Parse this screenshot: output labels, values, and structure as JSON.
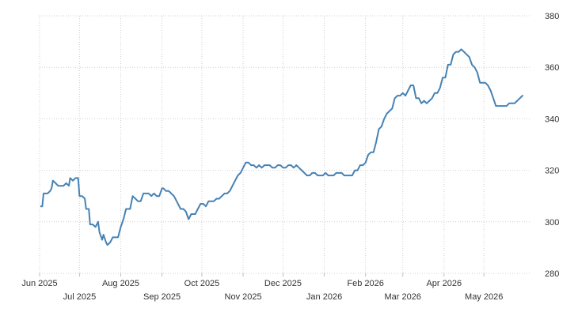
{
  "chart_data": {
    "type": "line",
    "title": "",
    "xlabel": "",
    "ylabel": "",
    "grid": true,
    "legend": "none",
    "color": "#4682b4",
    "ylim": [
      280,
      380
    ],
    "yticks": [
      280,
      300,
      320,
      340,
      360,
      380
    ],
    "xlim": [
      "2025-06-01",
      "2026-06-05"
    ],
    "xticks": [
      {
        "date": "2025-06-01",
        "label": "Jun 2025",
        "row": "upper"
      },
      {
        "date": "2025-07-01",
        "label": "Jul 2025",
        "row": "lower"
      },
      {
        "date": "2025-08-01",
        "label": "Aug 2025",
        "row": "upper"
      },
      {
        "date": "2025-09-01",
        "label": "Sep 2025",
        "row": "lower"
      },
      {
        "date": "2025-10-01",
        "label": "Oct 2025",
        "row": "upper"
      },
      {
        "date": "2025-11-01",
        "label": "Nov 2025",
        "row": "lower"
      },
      {
        "date": "2025-12-01",
        "label": "Dec 2025",
        "row": "upper"
      },
      {
        "date": "2026-01-01",
        "label": "Jan 2026",
        "row": "lower"
      },
      {
        "date": "2026-02-01",
        "label": "Feb 2026",
        "row": "upper"
      },
      {
        "date": "2026-03-01",
        "label": "Mar 2026",
        "row": "lower"
      },
      {
        "date": "2026-04-01",
        "label": "Apr 2026",
        "row": "upper"
      },
      {
        "date": "2026-05-01",
        "label": "May 2026",
        "row": "lower"
      }
    ],
    "series": [
      {
        "x": [
          "2025-06-02",
          "2025-06-03",
          "2025-06-04",
          "2025-06-07",
          "2025-06-09",
          "2025-06-10",
          "2025-06-11",
          "2025-06-13",
          "2025-06-15",
          "2025-06-17",
          "2025-06-19",
          "2025-06-21",
          "2025-06-23",
          "2025-06-24",
          "2025-06-26",
          "2025-06-28",
          "2025-06-30",
          "2025-07-01",
          "2025-07-03",
          "2025-07-05",
          "2025-07-06",
          "2025-07-08",
          "2025-07-09",
          "2025-07-11",
          "2025-07-13",
          "2025-07-15",
          "2025-07-16",
          "2025-07-18",
          "2025-07-19",
          "2025-07-21",
          "2025-07-22",
          "2025-07-24",
          "2025-07-26",
          "2025-07-27",
          "2025-07-29",
          "2025-07-30",
          "2025-08-01",
          "2025-08-03",
          "2025-08-05",
          "2025-08-06",
          "2025-08-08",
          "2025-08-10",
          "2025-08-12",
          "2025-08-14",
          "2025-08-16",
          "2025-08-18",
          "2025-08-20",
          "2025-08-22",
          "2025-08-24",
          "2025-08-26",
          "2025-08-28",
          "2025-08-30",
          "2025-09-01",
          "2025-09-02",
          "2025-09-04",
          "2025-09-06",
          "2025-09-08",
          "2025-09-10",
          "2025-09-12",
          "2025-09-14",
          "2025-09-15",
          "2025-09-17",
          "2025-09-19",
          "2025-09-21",
          "2025-09-23",
          "2025-09-25",
          "2025-09-26",
          "2025-09-28",
          "2025-09-30",
          "2025-10-02",
          "2025-10-04",
          "2025-10-06",
          "2025-10-08",
          "2025-10-10",
          "2025-10-12",
          "2025-10-14",
          "2025-10-16",
          "2025-10-18",
          "2025-10-20",
          "2025-10-22",
          "2025-10-24",
          "2025-10-26",
          "2025-10-28",
          "2025-10-30",
          "2025-11-01",
          "2025-11-03",
          "2025-11-05",
          "2025-11-07",
          "2025-11-09",
          "2025-11-11",
          "2025-11-13",
          "2025-11-15",
          "2025-11-17",
          "2025-11-19",
          "2025-11-21",
          "2025-11-23",
          "2025-11-25",
          "2025-11-27",
          "2025-11-29",
          "2025-12-01",
          "2025-12-03",
          "2025-12-05",
          "2025-12-07",
          "2025-12-09",
          "2025-12-11",
          "2025-12-13",
          "2025-12-15",
          "2025-12-17",
          "2025-12-19",
          "2025-12-21",
          "2025-12-23",
          "2025-12-25",
          "2025-12-27",
          "2025-12-29",
          "2025-12-31",
          "2026-01-02",
          "2026-01-04",
          "2026-01-06",
          "2026-01-08",
          "2026-01-10",
          "2026-01-12",
          "2026-01-14",
          "2026-01-16",
          "2026-01-18",
          "2026-01-20",
          "2026-01-22",
          "2026-01-24",
          "2026-01-26",
          "2026-01-28",
          "2026-01-30",
          "2026-02-01",
          "2026-02-03",
          "2026-02-05",
          "2026-02-07",
          "2026-02-09",
          "2026-02-11",
          "2026-02-13",
          "2026-02-15",
          "2026-02-17",
          "2026-02-19",
          "2026-02-21",
          "2026-02-23",
          "2026-02-25",
          "2026-02-27",
          "2026-03-01",
          "2026-03-03",
          "2026-03-05",
          "2026-03-07",
          "2026-03-09",
          "2026-03-11",
          "2026-03-13",
          "2026-03-15",
          "2026-03-17",
          "2026-03-19",
          "2026-03-21",
          "2026-03-23",
          "2026-03-25",
          "2026-03-27",
          "2026-03-29",
          "2026-03-31",
          "2026-04-02",
          "2026-04-04",
          "2026-04-06",
          "2026-04-08",
          "2026-04-10",
          "2026-04-12",
          "2026-04-14",
          "2026-04-16",
          "2026-04-18",
          "2026-04-20",
          "2026-04-22",
          "2026-04-24",
          "2026-04-26",
          "2026-04-28",
          "2026-04-30",
          "2026-05-02",
          "2026-05-04",
          "2026-05-06",
          "2026-05-08",
          "2026-05-10",
          "2026-05-12",
          "2026-05-14",
          "2026-05-16",
          "2026-05-18",
          "2026-05-20",
          "2026-05-22",
          "2026-05-24",
          "2026-05-26",
          "2026-05-28",
          "2026-05-30"
        ],
        "y": [
          306,
          306,
          311,
          311,
          312,
          313,
          316,
          315,
          314,
          314,
          314,
          315,
          314,
          317,
          316,
          317,
          317,
          310,
          310,
          309,
          305,
          305,
          299,
          299,
          298,
          300,
          296,
          293,
          295,
          292,
          291,
          292,
          294,
          294,
          294,
          294,
          298,
          301,
          305,
          305,
          305,
          310,
          309,
          308,
          308,
          311,
          311,
          311,
          310,
          311,
          310,
          310,
          313,
          313,
          312,
          312,
          311,
          310,
          308,
          306,
          305,
          305,
          304,
          301,
          303,
          303,
          303,
          305,
          307,
          307,
          306,
          308,
          308,
          308,
          309,
          309,
          310,
          311,
          311,
          312,
          314,
          316,
          318,
          319,
          321,
          323,
          323,
          322,
          322,
          321,
          322,
          321,
          322,
          322,
          322,
          321,
          321,
          322,
          322,
          321,
          321,
          322,
          322,
          321,
          322,
          321,
          320,
          319,
          318,
          318,
          319,
          319,
          318,
          318,
          318,
          319,
          318,
          318,
          318,
          319,
          319,
          319,
          318,
          318,
          318,
          318,
          320,
          320,
          322,
          322,
          323,
          326,
          327,
          327,
          331,
          336,
          337,
          340,
          342,
          343,
          344,
          348,
          349,
          349,
          350,
          349,
          351,
          353,
          353,
          348,
          348,
          346,
          347,
          346,
          347,
          348,
          350,
          350,
          352,
          356,
          356,
          361,
          361,
          365,
          366,
          366,
          367,
          366,
          365,
          364,
          361,
          360,
          358,
          354,
          354,
          354,
          353,
          351,
          348,
          345,
          345,
          345,
          345,
          345,
          346,
          346,
          346,
          347,
          348,
          349
        ]
      }
    ]
  }
}
